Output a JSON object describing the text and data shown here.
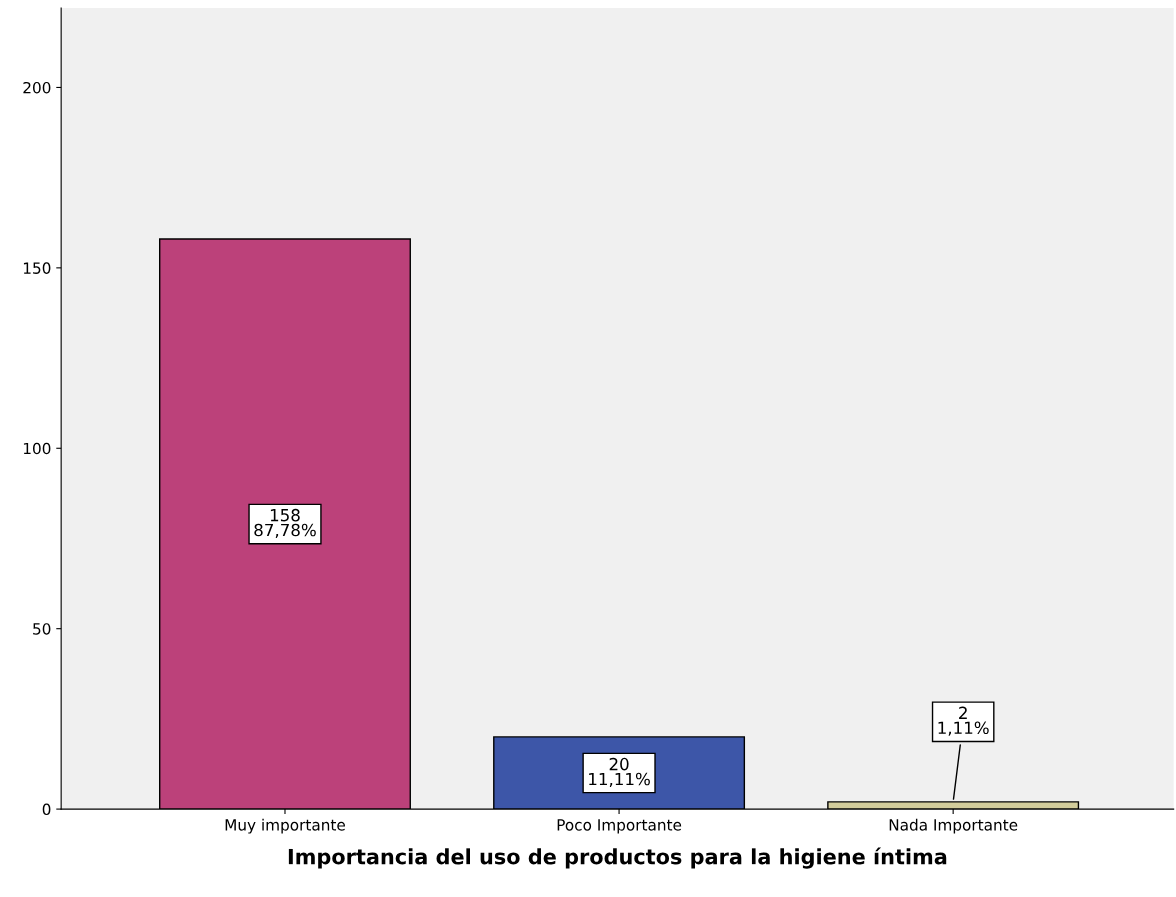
{
  "chart_data": {
    "type": "bar",
    "xlabel": "Importancia del uso de productos para la higiene íntima",
    "categories": [
      "Muy importante",
      "Poco Importante",
      "Nada Importante"
    ],
    "values": [
      158,
      20,
      2
    ],
    "colors": [
      "#bc417a",
      "#3d56a8",
      "#d2cc9b"
    ],
    "value_labels": [
      "158\n87,78%",
      "20\n11,11%",
      "2\n1,11%"
    ],
    "ylim": [
      0,
      222
    ],
    "yticks": [
      0,
      50,
      100,
      150,
      200
    ],
    "grid": false,
    "legend": false
  }
}
